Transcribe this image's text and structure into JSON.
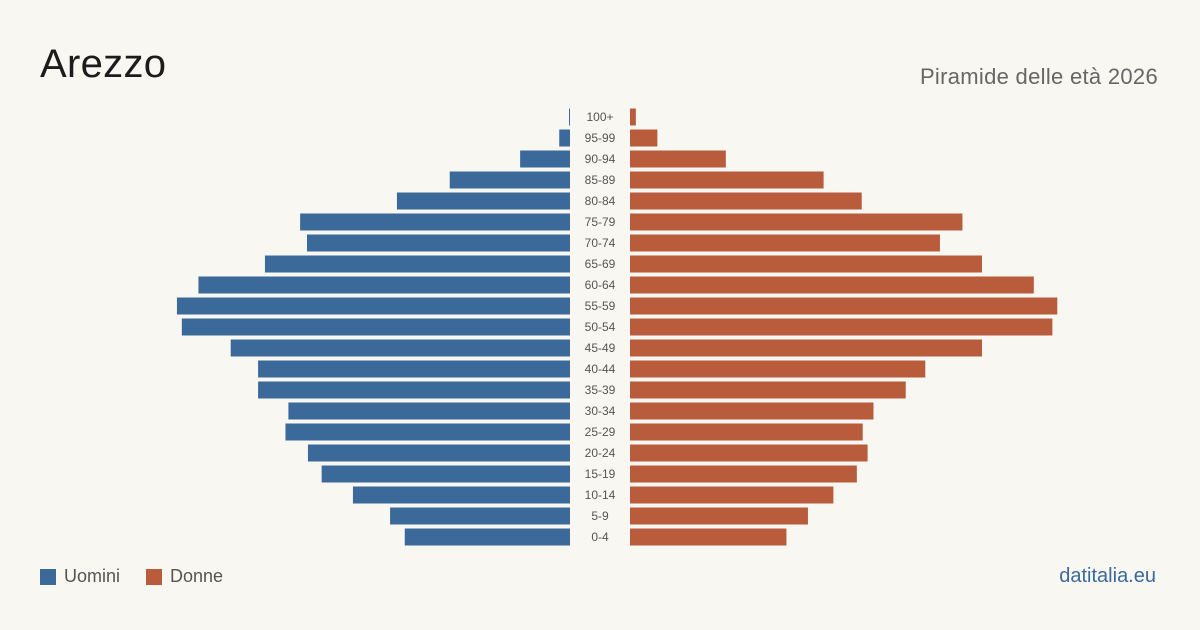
{
  "header": {
    "title": "Arezzo",
    "subtitle": "Piramide delle età 2026"
  },
  "footer": {
    "source": "datitalia.eu"
  },
  "colors": {
    "men": "#3b6a9a",
    "women": "#b85c3c"
  },
  "chart_data": {
    "type": "bar",
    "orientation": "horizontal-pyramid",
    "categories": [
      "0-4",
      "5-9",
      "10-14",
      "15-19",
      "20-24",
      "25-29",
      "30-34",
      "35-39",
      "40-44",
      "45-49",
      "50-54",
      "55-59",
      "60-64",
      "65-69",
      "70-74",
      "75-79",
      "80-84",
      "85-89",
      "90-94",
      "95-99",
      "100+"
    ],
    "series": [
      {
        "name": "Uomini",
        "color": "#3b6a9a",
        "values": [
          1690,
          1840,
          2220,
          2540,
          2680,
          2910,
          2880,
          3190,
          3190,
          3470,
          3970,
          4020,
          3800,
          3120,
          2690,
          2760,
          1770,
          1230,
          510,
          110,
          10
        ]
      },
      {
        "name": "Donne",
        "color": "#b85c3c",
        "values": [
          1600,
          1820,
          2080,
          2320,
          2430,
          2380,
          2490,
          2820,
          3020,
          3600,
          4320,
          4370,
          4130,
          3600,
          3170,
          3400,
          2370,
          1980,
          980,
          280,
          60
        ]
      }
    ],
    "xlim": [
      0,
      4500
    ],
    "grid": false,
    "legend": "bottom-left"
  }
}
